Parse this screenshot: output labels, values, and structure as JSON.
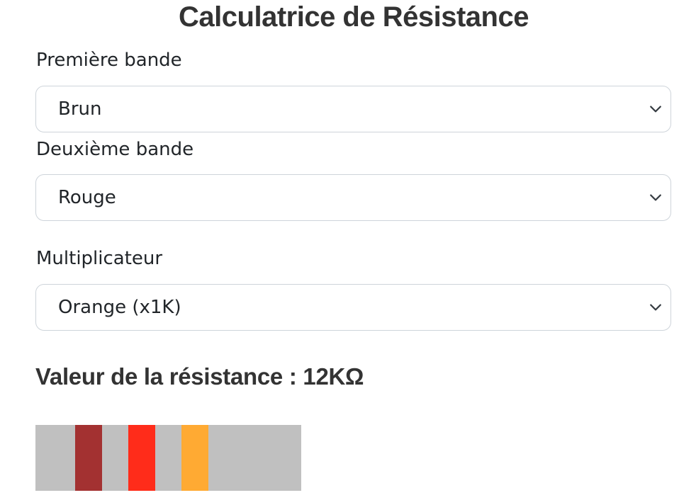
{
  "page": {
    "title": "Calculatrice de Résistance"
  },
  "fields": [
    {
      "label": "Première bande",
      "value": "Brun"
    },
    {
      "label": "Deuxième bande",
      "value": "Rouge"
    },
    {
      "label": "Multiplicateur",
      "value": "Orange (x1K)"
    }
  ],
  "result": {
    "text": "Valeur de la résistance : 12KΩ"
  },
  "resistor": {
    "body_color": "#c0c0c0",
    "bands": [
      {
        "name": "Brun",
        "color": "#a33131"
      },
      {
        "name": "Rouge",
        "color": "#ff2c1a"
      },
      {
        "name": "Orange",
        "color": "#ffaa33"
      }
    ]
  },
  "icons": {
    "select_indicator": "chevron-down-icon"
  }
}
